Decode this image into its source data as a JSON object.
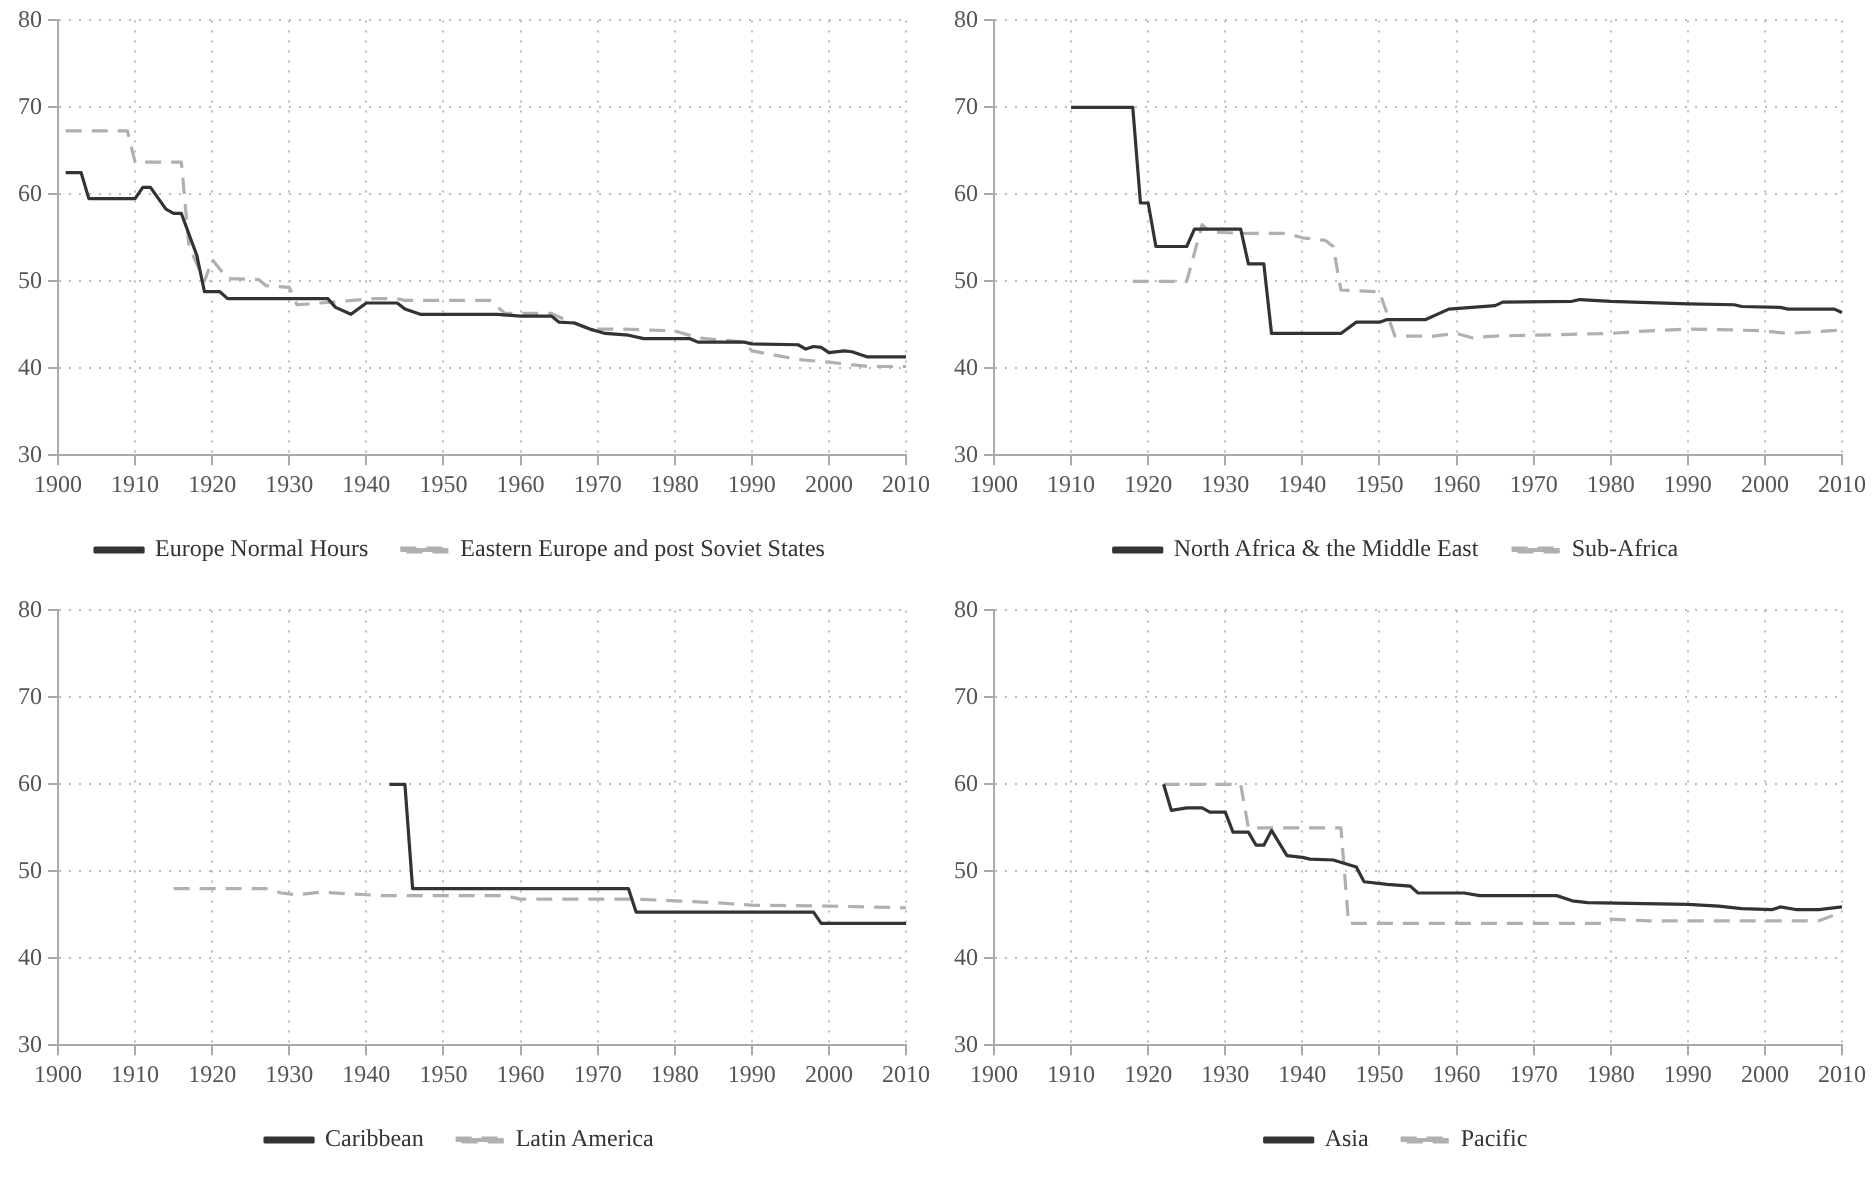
{
  "chart_data": [
    {
      "type": "line",
      "xlim": [
        1900,
        2010
      ],
      "ylim": [
        30,
        80
      ],
      "xticks": [
        1900,
        1910,
        1920,
        1930,
        1940,
        1950,
        1960,
        1970,
        1980,
        1990,
        2000,
        2010
      ],
      "yticks": [
        30,
        40,
        50,
        60,
        70,
        80
      ],
      "grid": true,
      "legend": "bottom",
      "series": [
        {
          "name": "Europe Normal Hours",
          "color": "#333333",
          "line_style": "solid",
          "x": [
            1901,
            1903,
            1904,
            1910,
            1911,
            1912,
            1914,
            1915,
            1916,
            1918,
            1919,
            1921,
            1922,
            1935,
            1936,
            1938,
            1940,
            1944,
            1945,
            1947,
            1957,
            1960,
            1964,
            1965,
            1967,
            1969,
            1971,
            1974,
            1976,
            1982,
            1983,
            1989,
            1990,
            1996,
            1997,
            1998,
            1999,
            2000,
            2002,
            2003,
            2005,
            2010
          ],
          "values": [
            62.5,
            62.5,
            59.5,
            59.5,
            60.8,
            60.8,
            58.3,
            57.8,
            57.8,
            53,
            48.8,
            48.8,
            48,
            48,
            47,
            46.2,
            47.5,
            47.5,
            46.8,
            46.2,
            46.2,
            46,
            46,
            45.3,
            45.2,
            44.5,
            44,
            43.8,
            43.4,
            43.4,
            43,
            43,
            42.8,
            42.7,
            42.2,
            42.5,
            42.4,
            41.8,
            42,
            41.9,
            41.3,
            41.3
          ]
        },
        {
          "name": "Eastern Europe and post Soviet States",
          "color": "#b0b0b0",
          "line_style": "dashed",
          "x": [
            1901,
            1909,
            1910,
            1916,
            1917,
            1919,
            1920,
            1922,
            1926,
            1927,
            1930,
            1931,
            1934,
            1941,
            1944,
            1945,
            1956,
            1958,
            1964,
            1966,
            1969,
            1973,
            1980,
            1983,
            1989,
            1990,
            1993,
            1996,
            2000,
            2005,
            2010
          ],
          "values": [
            67.3,
            67.3,
            63.7,
            63.7,
            54,
            50,
            52.5,
            50.3,
            50.2,
            49.5,
            49.3,
            47.3,
            47.5,
            48,
            48,
            47.8,
            47.8,
            46.3,
            46.3,
            45.5,
            44.5,
            44.5,
            44.3,
            43.5,
            43,
            42,
            41.5,
            41,
            40.7,
            40.2,
            40.2
          ]
        }
      ]
    },
    {
      "type": "line",
      "xlim": [
        1900,
        2010
      ],
      "ylim": [
        30,
        80
      ],
      "xticks": [
        1900,
        1910,
        1920,
        1930,
        1940,
        1950,
        1960,
        1970,
        1980,
        1990,
        2000,
        2010
      ],
      "yticks": [
        30,
        40,
        50,
        60,
        70,
        80
      ],
      "grid": true,
      "legend": "bottom",
      "series": [
        {
          "name": "North Africa & the Middle East",
          "color": "#333333",
          "line_style": "solid",
          "x": [
            1910,
            1918,
            1919,
            1920,
            1921,
            1925,
            1926,
            1932,
            1933,
            1935,
            1936,
            1945,
            1947,
            1950,
            1951,
            1956,
            1959,
            1965,
            1966,
            1975,
            1976,
            1980,
            1990,
            1996,
            1997,
            2002,
            2003,
            2009,
            2010
          ],
          "values": [
            70,
            70,
            59,
            59,
            54,
            54,
            56,
            56,
            52,
            52,
            44,
            44,
            45.3,
            45.3,
            45.6,
            45.6,
            46.8,
            47.2,
            47.6,
            47.7,
            47.9,
            47.7,
            47.4,
            47.3,
            47.1,
            47,
            46.8,
            46.8,
            46.4
          ]
        },
        {
          "name": "Sub-Africa",
          "color": "#b0b0b0",
          "line_style": "dashed",
          "x": [
            1918,
            1925,
            1927,
            1928,
            1932,
            1938,
            1940,
            1943,
            1944,
            1945,
            1950,
            1952,
            1957,
            1960,
            1962,
            1965,
            1970,
            1980,
            1983,
            1990,
            1996,
            2000,
            2003,
            2010
          ],
          "values": [
            50,
            50,
            56.5,
            55.7,
            55.5,
            55.5,
            55,
            54.7,
            54,
            49,
            48.8,
            43.7,
            43.7,
            44,
            43.5,
            43.7,
            43.8,
            44,
            44.2,
            44.5,
            44.4,
            44.3,
            44,
            44.4
          ]
        }
      ]
    },
    {
      "type": "line",
      "xlim": [
        1900,
        2010
      ],
      "ylim": [
        30,
        80
      ],
      "xticks": [
        1900,
        1910,
        1920,
        1930,
        1940,
        1950,
        1960,
        1970,
        1980,
        1990,
        2000,
        2010
      ],
      "yticks": [
        30,
        40,
        50,
        60,
        70,
        80
      ],
      "grid": true,
      "legend": "bottom",
      "series": [
        {
          "name": "Caribbean",
          "color": "#333333",
          "line_style": "solid",
          "x": [
            1943,
            1945,
            1946,
            1974,
            1975,
            1998,
            1999,
            2010
          ],
          "values": [
            60,
            60,
            48,
            48,
            45.3,
            45.3,
            44,
            44
          ]
        },
        {
          "name": "Latin America",
          "color": "#b0b0b0",
          "line_style": "dashed",
          "x": [
            1915,
            1927,
            1929,
            1931,
            1934,
            1940,
            1942,
            1958,
            1960,
            1975,
            1980,
            1985,
            1990,
            2000,
            2010
          ],
          "values": [
            48,
            48,
            47.5,
            47.3,
            47.6,
            47.3,
            47.2,
            47.2,
            46.8,
            46.8,
            46.6,
            46.4,
            46.1,
            46,
            45.8
          ]
        }
      ]
    },
    {
      "type": "line",
      "xlim": [
        1900,
        2010
      ],
      "ylim": [
        30,
        80
      ],
      "xticks": [
        1900,
        1910,
        1920,
        1930,
        1940,
        1950,
        1960,
        1970,
        1980,
        1990,
        2000,
        2010
      ],
      "yticks": [
        30,
        40,
        50,
        60,
        70,
        80
      ],
      "grid": true,
      "legend": "bottom",
      "series": [
        {
          "name": "Asia",
          "color": "#333333",
          "line_style": "solid",
          "x": [
            1922,
            1923,
            1925,
            1927,
            1928,
            1930,
            1931,
            1933,
            1934,
            1935,
            1936,
            1938,
            1940,
            1941,
            1944,
            1947,
            1948,
            1951,
            1954,
            1955,
            1961,
            1963,
            1973,
            1975,
            1977,
            1990,
            1994,
            1997,
            2001,
            2002,
            2004,
            2007,
            2010
          ],
          "values": [
            60,
            57,
            57.3,
            57.3,
            56.8,
            56.8,
            54.5,
            54.5,
            53,
            53,
            54.7,
            51.8,
            51.6,
            51.4,
            51.3,
            50.5,
            48.8,
            48.5,
            48.3,
            47.5,
            47.5,
            47.2,
            47.2,
            46.6,
            46.4,
            46.2,
            46,
            45.7,
            45.6,
            45.9,
            45.6,
            45.6,
            45.9
          ]
        },
        {
          "name": "Pacific",
          "color": "#b0b0b0",
          "line_style": "dashed",
          "x": [
            1922,
            1932,
            1933,
            1945,
            1946,
            1979,
            1980,
            1985,
            2007,
            2010
          ],
          "values": [
            60,
            60,
            55,
            55,
            44,
            44,
            44.5,
            44.3,
            44.3,
            45.3
          ]
        }
      ]
    }
  ]
}
